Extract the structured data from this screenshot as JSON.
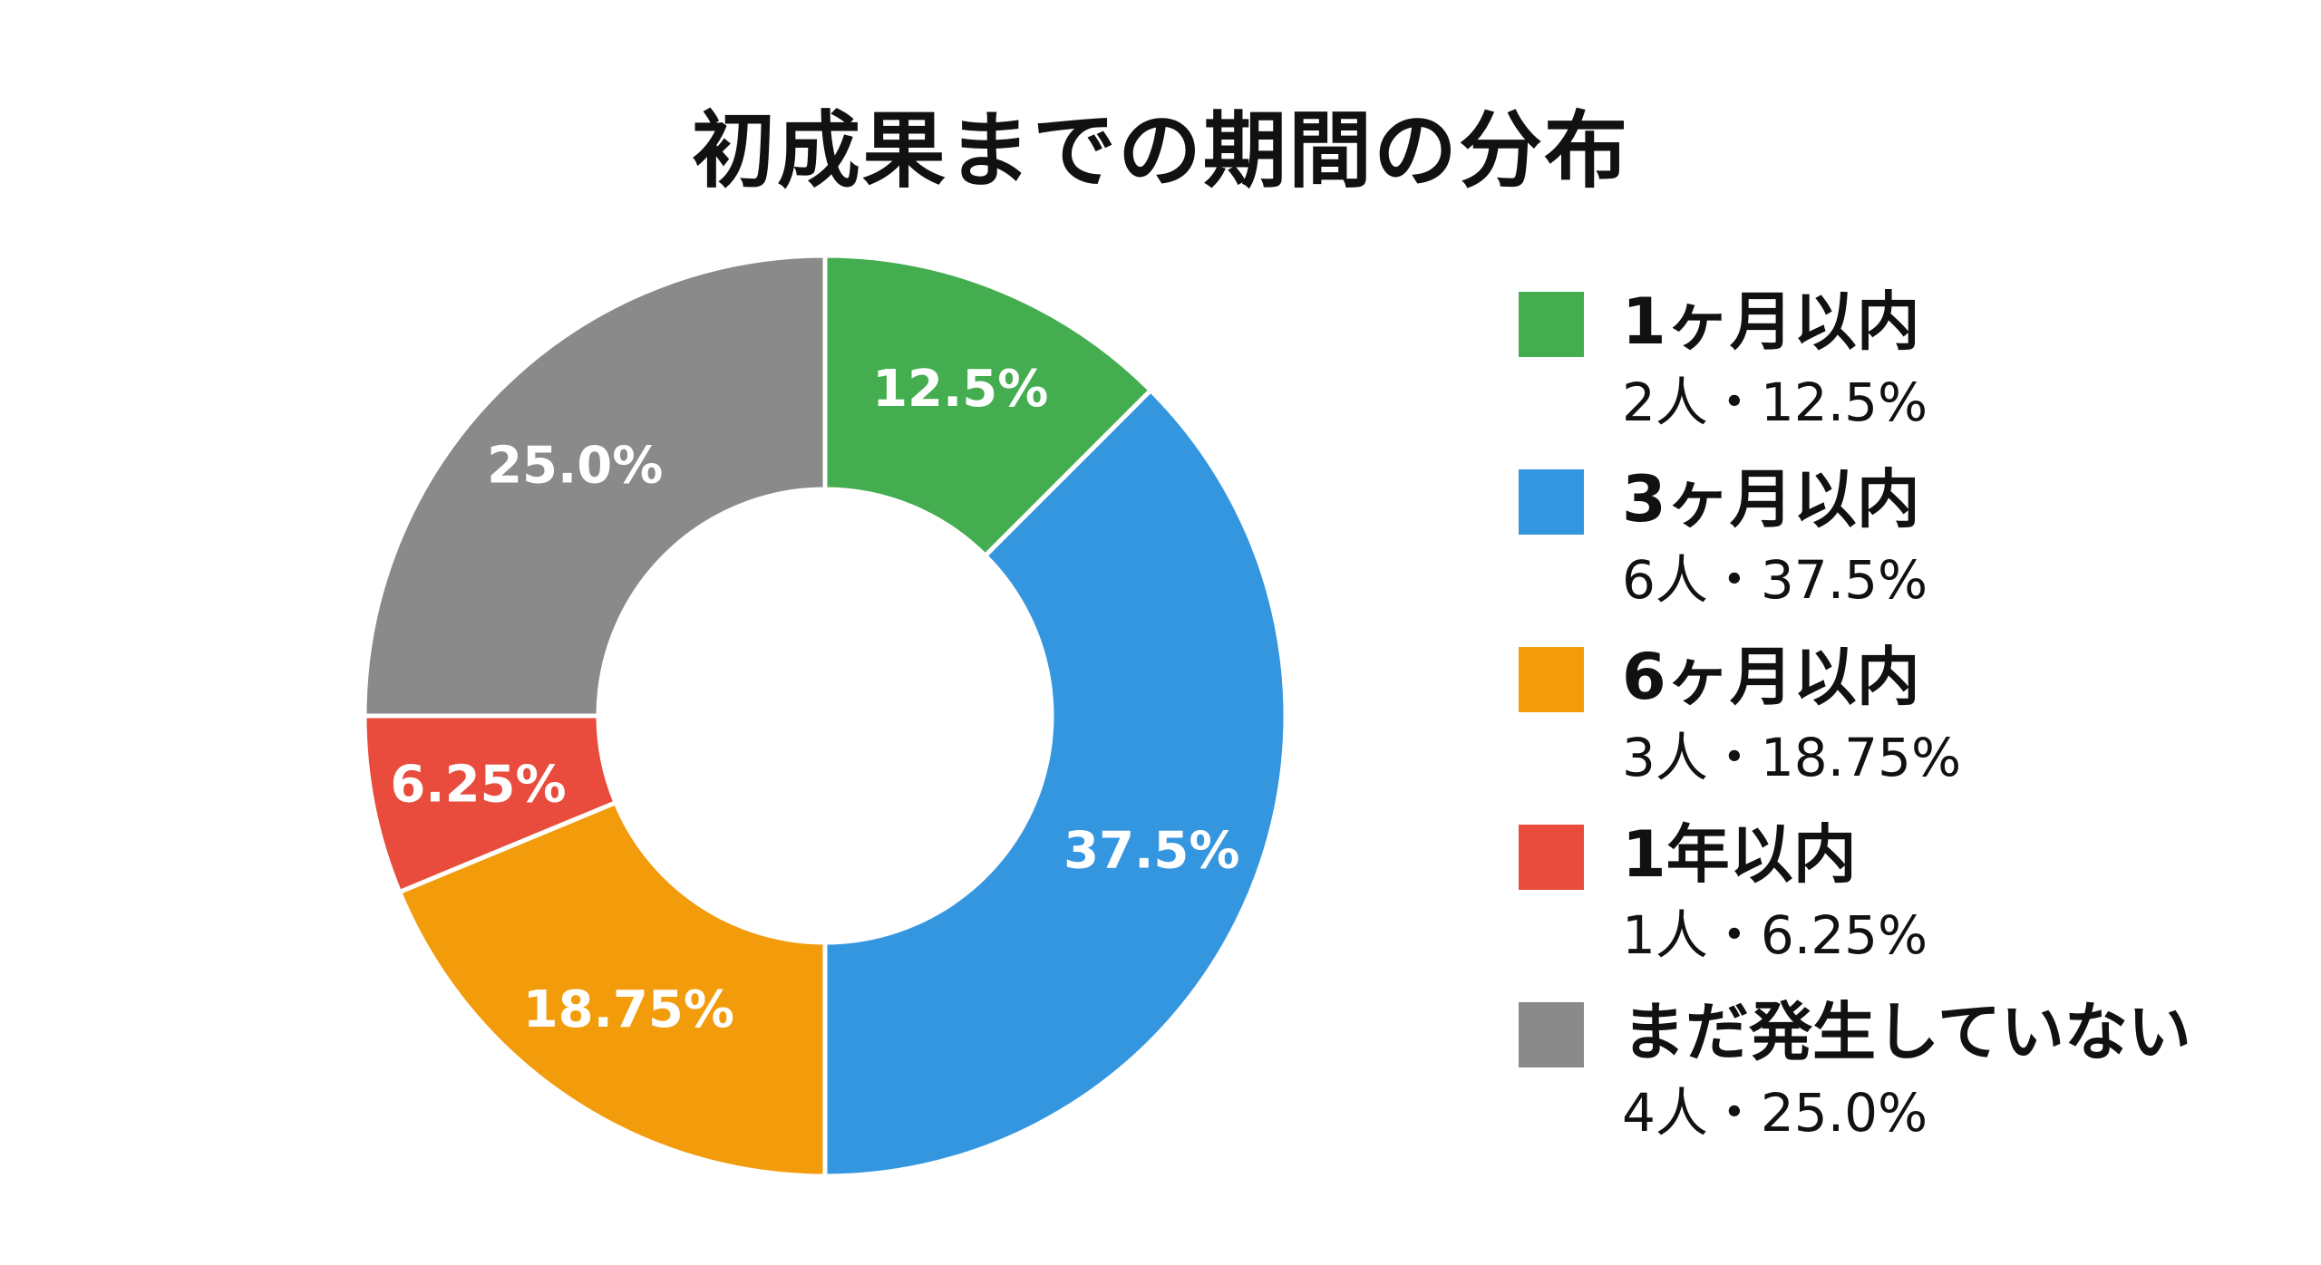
{
  "chart_data": {
    "type": "pie",
    "title": "初成果までの期間の分布",
    "categories": [
      "1ヶ月以内",
      "3ヶ月以内",
      "6ヶ月以内",
      "1年以内",
      "まだ発生していない"
    ],
    "values": [
      2,
      6,
      3,
      1,
      4
    ],
    "percent_labels": [
      "12.5%",
      "37.5%",
      "18.75%",
      "6.25%",
      "25.0%"
    ],
    "legend_details": [
      "2人・12.5%",
      "6人・37.5%",
      "3人・18.75%",
      "1人・6.25%",
      "4人・25.0%"
    ],
    "colors": [
      "#43ad4f",
      "#3596e0",
      "#f29c0c",
      "#e94b3c",
      "#8a8a8a"
    ],
    "legend_position": "right",
    "donut": true
  }
}
